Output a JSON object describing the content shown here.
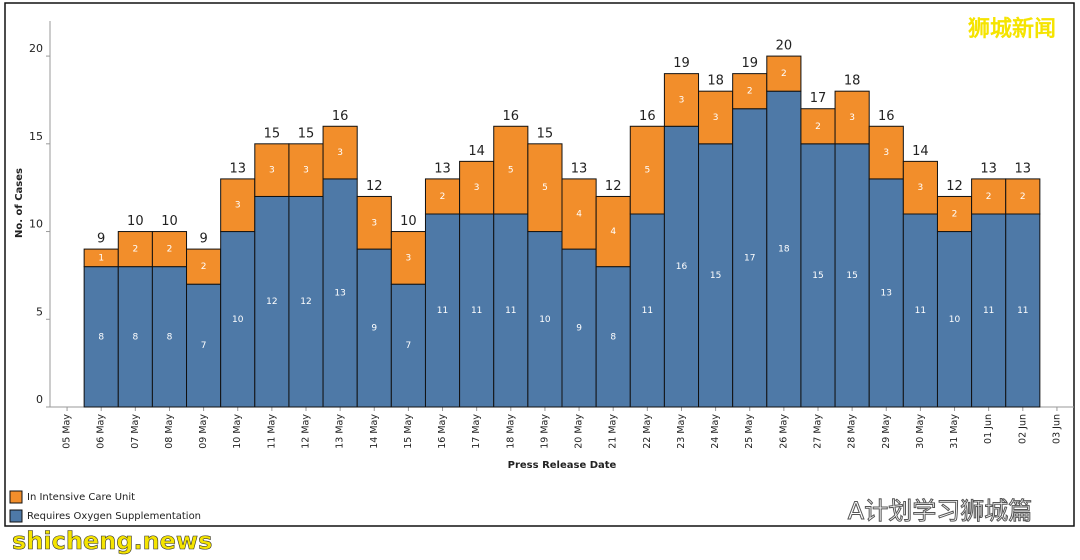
{
  "chart_data": {
    "type": "stacked_bar",
    "watermark_top": "狮城新闻",
    "watermark_bottom": "A计划学习狮城篇",
    "watermark_site": "shicheng.news",
    "x_label": "Press Release Date",
    "y_label": "No. of Cases",
    "categories": [
      "05 May",
      "06 May",
      "07 May",
      "08 May",
      "09 May",
      "10 May",
      "11 May",
      "12 May",
      "13 May",
      "14 May",
      "15 May",
      "16 May",
      "17 May",
      "18 May",
      "19 May",
      "20 May",
      "21 May",
      "22 May",
      "23 May",
      "24 May",
      "25 May",
      "26 May",
      "27 May",
      "28 May",
      "29 May",
      "30 May",
      "31 May",
      "01 Jun",
      "02 Jun",
      "03 Jun"
    ],
    "series": [
      {
        "name": "Requires Oxygen Supplementation",
        "color": "#4e79a7",
        "values": [
          null,
          8,
          8,
          8,
          7,
          10,
          12,
          12,
          13,
          9,
          7,
          11,
          11,
          11,
          10,
          9,
          8,
          11,
          16,
          15,
          17,
          18,
          15,
          15,
          13,
          11,
          10,
          11,
          11,
          null
        ]
      },
      {
        "name": "In Intensive Care Unit",
        "color": "#f28e2b",
        "values": [
          null,
          1,
          2,
          2,
          2,
          3,
          3,
          3,
          3,
          3,
          3,
          2,
          3,
          5,
          5,
          4,
          4,
          5,
          3,
          3,
          2,
          2,
          2,
          3,
          3,
          3,
          2,
          2,
          2,
          null
        ]
      }
    ],
    "totals": [
      null,
      9,
      10,
      10,
      9,
      13,
      15,
      15,
      16,
      12,
      10,
      13,
      14,
      16,
      15,
      13,
      12,
      16,
      19,
      18,
      19,
      20,
      17,
      18,
      16,
      14,
      12,
      13,
      13,
      null
    ],
    "ylim": [
      0,
      22
    ],
    "yticks": [
      0,
      5,
      10,
      15,
      20
    ]
  }
}
